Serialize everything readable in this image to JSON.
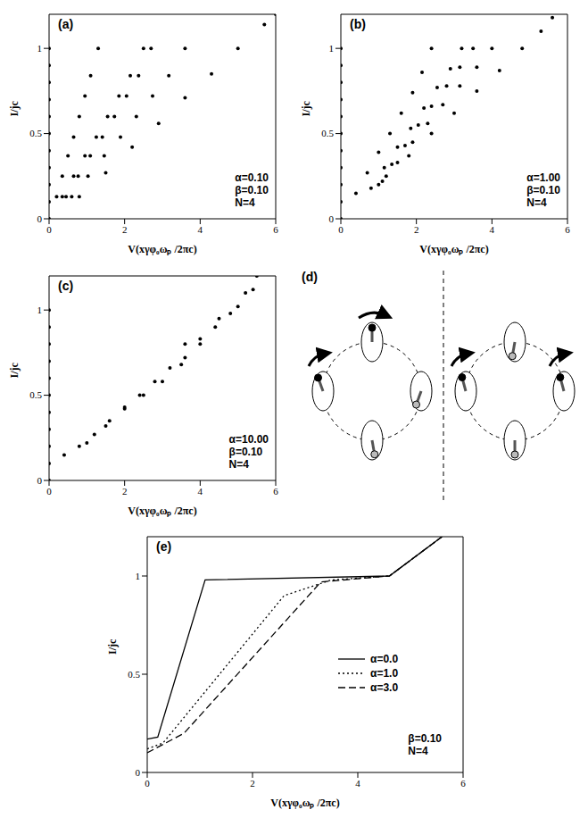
{
  "chart_data": [
    {
      "type": "scatter",
      "label": "(a)",
      "x_label": "V(xγφ₀ωₚ /2πc)",
      "y_label": "I/jc",
      "annotations": [
        "α=0.10",
        "β=0.10",
        "N=4"
      ],
      "xlim": [
        0,
        6
      ],
      "xticks": [
        0,
        2,
        4,
        6
      ],
      "ylim": [
        0,
        1.2
      ],
      "yticks": [
        0,
        0.5,
        1
      ],
      "series": [
        {
          "color": "#000000",
          "x": [
            0,
            0,
            0,
            0,
            0,
            0,
            0,
            0,
            0,
            0,
            0
          ],
          "values": [
            0,
            0.1,
            0.2,
            0.3,
            0.4,
            0.5,
            0.6,
            0.7,
            0.8,
            0.9,
            1.0
          ]
        },
        {
          "color": "#000000",
          "x": [
            0.2,
            0.35,
            0.5,
            0.65,
            0.8,
            0.95,
            1.1,
            1.3
          ],
          "values": [
            0.13,
            0.25,
            0.37,
            0.48,
            0.6,
            0.72,
            0.84,
            1.0
          ]
        },
        {
          "color": "#000000",
          "x": [
            0.35,
            0.65,
            0.95,
            1.25,
            1.55,
            1.85,
            2.15,
            2.5
          ],
          "values": [
            0.13,
            0.25,
            0.37,
            0.48,
            0.6,
            0.72,
            0.84,
            1.0
          ]
        },
        {
          "color": "#000000",
          "x": [
            0.45,
            0.77,
            1.09,
            1.41,
            1.73,
            2.05,
            2.37,
            2.7
          ],
          "values": [
            0.13,
            0.25,
            0.37,
            0.48,
            0.6,
            0.72,
            0.84,
            1.0
          ]
        },
        {
          "color": "#000000",
          "x": [
            0.6,
            1.03,
            1.46,
            1.89,
            2.31,
            2.74,
            3.17,
            3.6
          ],
          "values": [
            0.13,
            0.25,
            0.37,
            0.48,
            0.6,
            0.72,
            0.84,
            1.0
          ]
        },
        {
          "color": "#000000",
          "x": [
            0.8,
            1.5,
            2.2,
            2.9,
            3.6,
            4.3,
            5.0,
            5.7,
            6.0
          ],
          "values": [
            0.13,
            0.27,
            0.42,
            0.56,
            0.71,
            0.85,
            1.0,
            1.14,
            1.2
          ]
        }
      ]
    },
    {
      "type": "scatter",
      "label": "(b)",
      "x_label": "V(xγφ₀ωₚ /2πc)",
      "y_label": "I/jc",
      "annotations": [
        "α=1.00",
        "β=0.10",
        "N=4"
      ],
      "xlim": [
        0,
        6
      ],
      "xticks": [
        0,
        2,
        4,
        6
      ],
      "ylim": [
        0,
        1.2
      ],
      "yticks": [
        0,
        0.5,
        1
      ],
      "series": [
        {
          "color": "#000000",
          "x": [
            0,
            0,
            0,
            0,
            0,
            0,
            0,
            0,
            0,
            0,
            0
          ],
          "values": [
            0,
            0.1,
            0.2,
            0.3,
            0.4,
            0.5,
            0.6,
            0.7,
            0.8,
            0.9,
            1.0
          ]
        },
        {
          "color": "#000000",
          "x": [
            0.4,
            0.7,
            1.0,
            1.3,
            1.6,
            1.9,
            2.15,
            2.4
          ],
          "values": [
            0.15,
            0.27,
            0.39,
            0.5,
            0.62,
            0.74,
            0.86,
            1.0
          ]
        },
        {
          "color": "#000000",
          "x": [
            0.8,
            1.15,
            1.5,
            1.85,
            2.2,
            2.55,
            2.9,
            3.2
          ],
          "values": [
            0.18,
            0.3,
            0.42,
            0.53,
            0.65,
            0.77,
            0.88,
            1.0
          ]
        },
        {
          "color": "#000000",
          "x": [
            1.0,
            1.35,
            1.7,
            2.05,
            2.4,
            2.8,
            3.15,
            3.5
          ],
          "values": [
            0.2,
            0.32,
            0.43,
            0.55,
            0.66,
            0.78,
            0.89,
            1.0
          ]
        },
        {
          "color": "#000000",
          "x": [
            1.1,
            1.5,
            1.9,
            2.3,
            2.7,
            3.15,
            3.6,
            4.0
          ],
          "values": [
            0.22,
            0.33,
            0.45,
            0.56,
            0.67,
            0.78,
            0.89,
            1.0
          ]
        },
        {
          "color": "#000000",
          "x": [
            1.2,
            1.8,
            2.4,
            3.0,
            3.6,
            4.2,
            4.8,
            5.3,
            5.6
          ],
          "values": [
            0.25,
            0.37,
            0.5,
            0.62,
            0.75,
            0.87,
            1.0,
            1.1,
            1.18
          ]
        }
      ]
    },
    {
      "type": "scatter",
      "label": "(c)",
      "x_label": "V(xγφ₀ωₚ /2πc)",
      "y_label": "I/jc",
      "annotations": [
        "α=10.00",
        "β=0.10",
        "N=4"
      ],
      "xlim": [
        0,
        6
      ],
      "xticks": [
        0,
        2,
        4,
        6
      ],
      "ylim": [
        0,
        1.2
      ],
      "yticks": [
        0,
        0.5,
        1
      ],
      "series": [
        {
          "color": "#000000",
          "x": [
            0,
            0,
            0,
            0,
            0,
            0,
            0,
            0,
            0,
            0,
            0
          ],
          "values": [
            0,
            0.1,
            0.2,
            0.3,
            0.4,
            0.5,
            0.6,
            0.7,
            0.8,
            0.9,
            1.0
          ]
        },
        {
          "color": "#000000",
          "x": [
            0.4,
            0.8,
            1.2,
            1.6,
            2.0,
            2.4,
            2.8,
            3.2,
            3.6,
            4.0,
            4.4,
            4.8,
            5.2,
            5.5
          ],
          "values": [
            0.15,
            0.2,
            0.27,
            0.35,
            0.43,
            0.5,
            0.58,
            0.66,
            0.72,
            0.8,
            0.9,
            0.98,
            1.1,
            1.2
          ]
        },
        {
          "color": "#000000",
          "x": [
            1.0,
            1.5,
            2.0,
            2.5,
            3.0,
            3.5,
            3.6,
            4.0,
            4.5,
            5.0,
            5.4
          ],
          "values": [
            0.22,
            0.32,
            0.42,
            0.5,
            0.58,
            0.68,
            0.8,
            0.83,
            0.95,
            1.02,
            1.12
          ]
        }
      ]
    },
    {
      "type": "line",
      "label": "(e)",
      "x_label": "V(xγφ₀ωₚ /2πc)",
      "y_label": "I/jc",
      "annotations": [
        "β=0.10",
        "N=4"
      ],
      "legend": "right",
      "xlim": [
        0,
        6
      ],
      "xticks": [
        0,
        2,
        4,
        6
      ],
      "ylim": [
        0,
        1.2
      ],
      "yticks": [
        0,
        0.5,
        1
      ],
      "series": [
        {
          "name": "α=0.0",
          "color": "#000000",
          "line_style": "solid",
          "x": [
            0,
            0.2,
            1.1,
            4.6,
            5.6
          ],
          "values": [
            0.17,
            0.18,
            0.98,
            1.0,
            1.2
          ]
        },
        {
          "name": "α=1.0",
          "color": "#000000",
          "line_style": "dotted",
          "x": [
            0,
            0.3,
            2.6,
            3.5,
            4.6,
            5.6
          ],
          "values": [
            0.12,
            0.15,
            0.9,
            0.98,
            1.0,
            1.2
          ]
        },
        {
          "name": "α=3.0",
          "color": "#000000",
          "line_style": "dashed",
          "x": [
            0,
            0.7,
            3.3,
            4.6,
            5.6
          ],
          "values": [
            0.1,
            0.2,
            0.97,
            1.0,
            1.2
          ]
        }
      ]
    }
  ],
  "diagram": {
    "label": "(d)"
  }
}
